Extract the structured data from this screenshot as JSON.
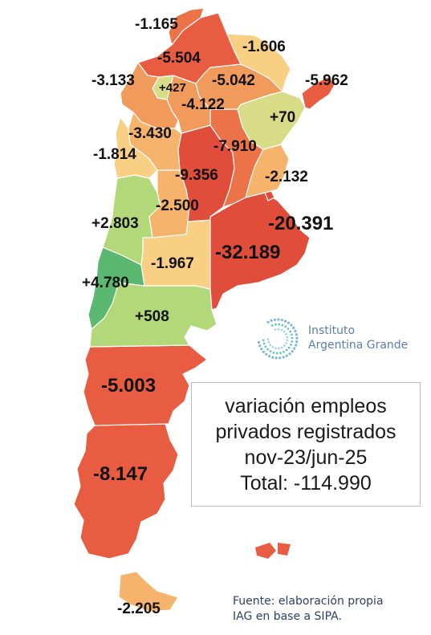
{
  "colors": {
    "deep_red": "#e04e3b",
    "red": "#e85d42",
    "red_orange": "#eb7347",
    "orange": "#f09a5c",
    "light_orange": "#f5b36b",
    "pale_yellow": "#f8cf83",
    "yellow_green": "#d8dc86",
    "light_green": "#b2d87a",
    "green": "#8fca70",
    "dark_green": "#5bb870"
  },
  "provinces": [
    {
      "id": "jujuy",
      "value": "-1.165",
      "color": "red_orange"
    },
    {
      "id": "formosa",
      "value": "-1.606",
      "color": "pale_yellow"
    },
    {
      "id": "salta",
      "value": "-5.504",
      "color": "red"
    },
    {
      "id": "misiones",
      "value": "-5.962",
      "color": "red"
    },
    {
      "id": "catamarca",
      "value": "-3.133",
      "color": "orange"
    },
    {
      "id": "tucuman",
      "value": "+427",
      "color": "yellow_green"
    },
    {
      "id": "chaco",
      "value": "-5.042",
      "color": "orange"
    },
    {
      "id": "santiago",
      "value": "-4.122",
      "color": "orange"
    },
    {
      "id": "corrientes",
      "value": "+70",
      "color": "yellow_green"
    },
    {
      "id": "la_rioja",
      "value": "-3.430",
      "color": "light_orange"
    },
    {
      "id": "santa_fe",
      "value": "-7.910",
      "color": "red_orange"
    },
    {
      "id": "san_juan",
      "value": "-1.814",
      "color": "pale_yellow"
    },
    {
      "id": "cordoba",
      "value": "-9.356",
      "color": "deep_red"
    },
    {
      "id": "entre_rios",
      "value": "-2.132",
      "color": "light_orange"
    },
    {
      "id": "san_luis",
      "value": "-2.500",
      "color": "light_orange"
    },
    {
      "id": "mendoza",
      "value": "+2.803",
      "color": "light_green"
    },
    {
      "id": "caba",
      "value": "-20.391",
      "color": "deep_red"
    },
    {
      "id": "buenos_aires",
      "value": "-32.189",
      "color": "deep_red"
    },
    {
      "id": "la_pampa",
      "value": "-1.967",
      "color": "pale_yellow"
    },
    {
      "id": "neuquen",
      "value": "+4.780",
      "color": "dark_green"
    },
    {
      "id": "rio_negro",
      "value": "+508",
      "color": "light_green"
    },
    {
      "id": "chubut",
      "value": "-5.003",
      "color": "red"
    },
    {
      "id": "santa_cruz",
      "value": "-8.147",
      "color": "red"
    },
    {
      "id": "tierra_del_fuego",
      "value": "-2.205",
      "color": "light_orange"
    }
  ],
  "legend": {
    "line1": "variación empleos",
    "line2": "privados registrados",
    "line3": "nov-23/jun-25",
    "line4": "Total: -114.990"
  },
  "logo": {
    "icon": "instituto-argentina-grande-logo-icon",
    "line1": "Instituto",
    "line2": "Argentina Grande"
  },
  "source": {
    "line1": "Fuente: elaboración propia",
    "line2": "IAG en base a SIPA."
  }
}
